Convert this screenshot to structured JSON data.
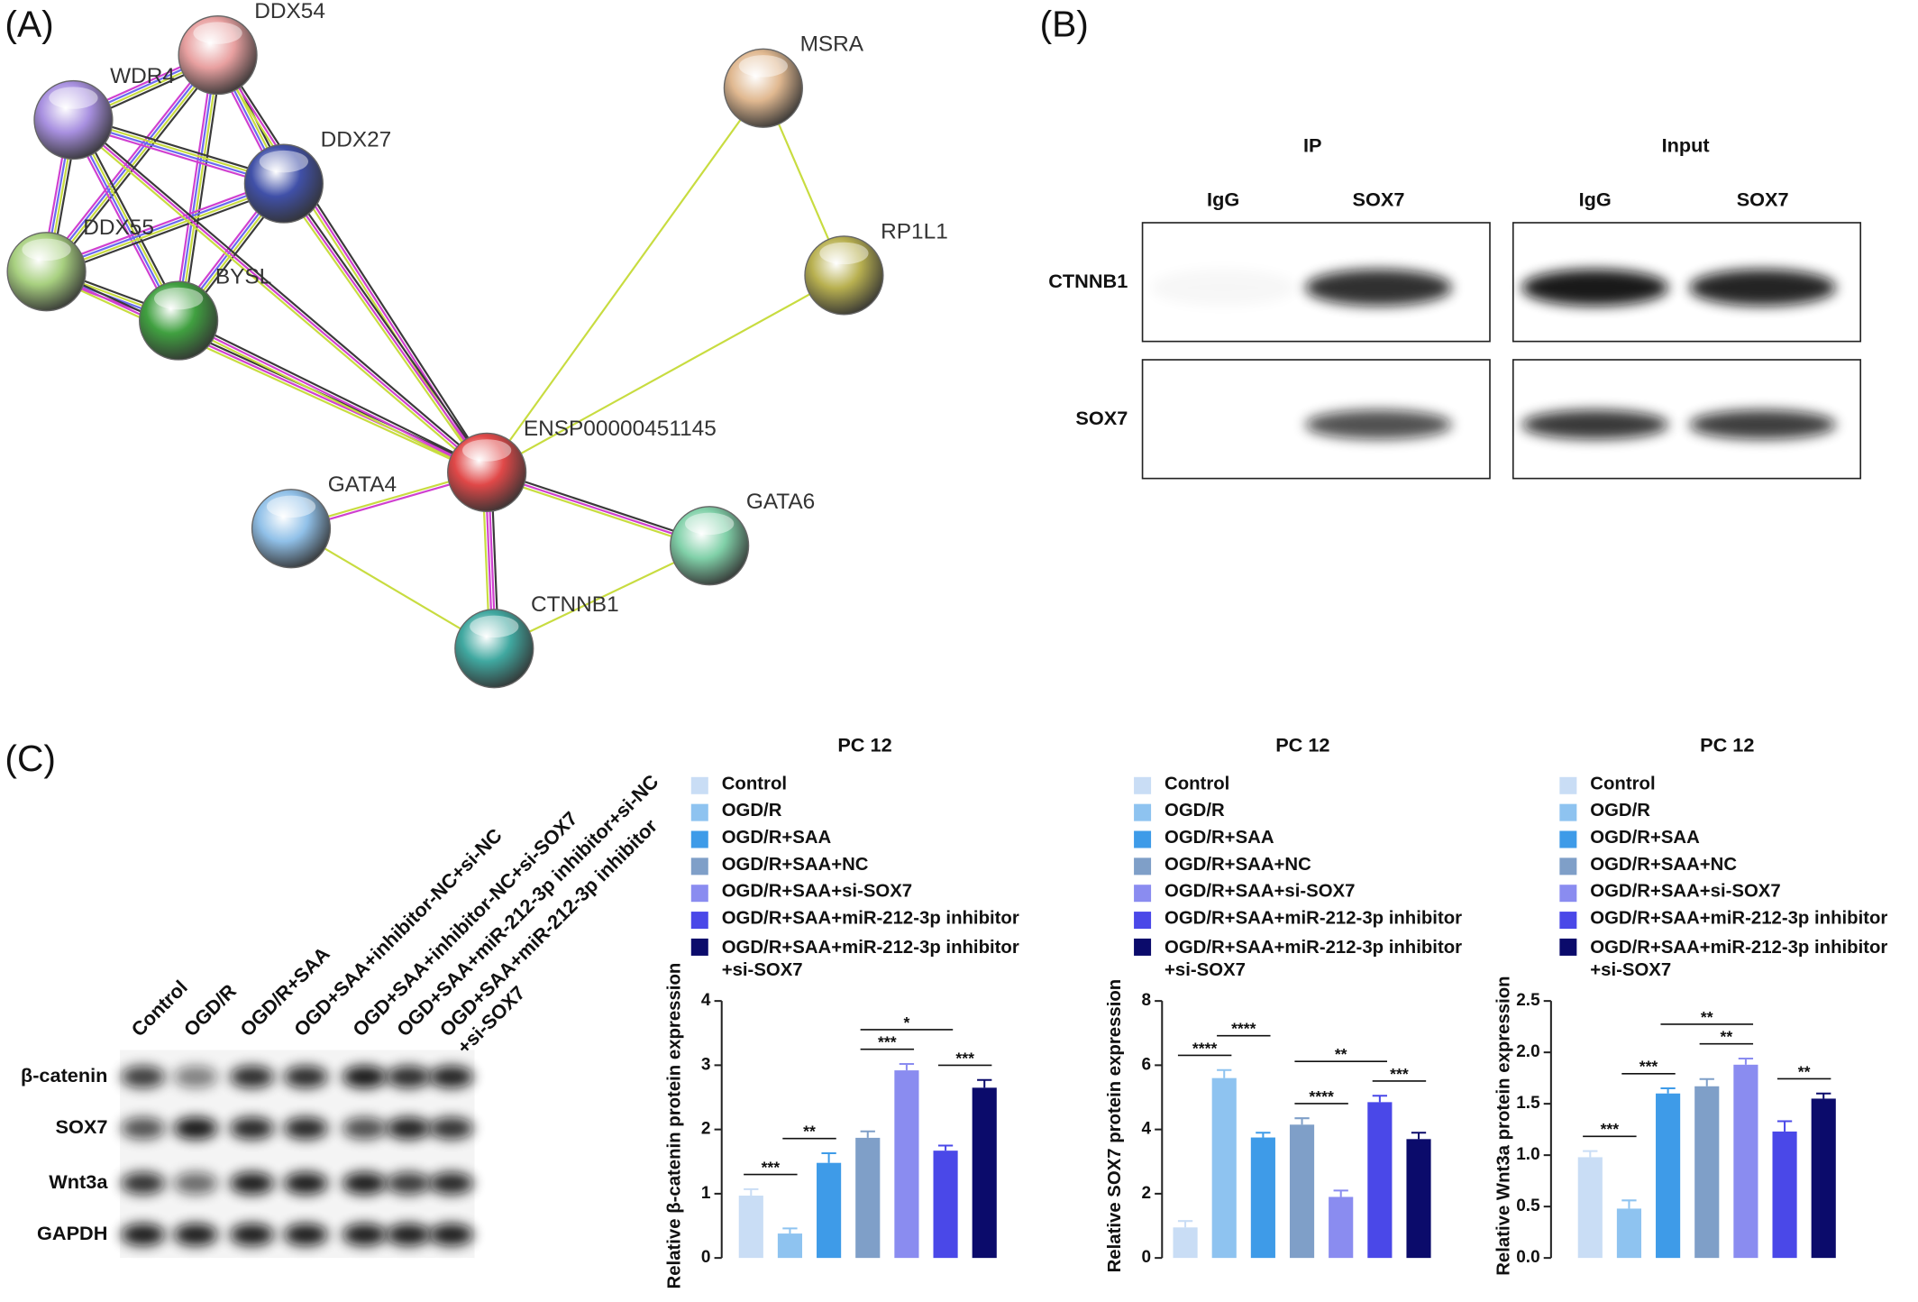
{
  "panels": [
    "(A)",
    "(B)",
    "(C)"
  ],
  "network": {
    "nodes": [
      {
        "label": "DDX54"
      },
      {
        "label": "WDR4"
      },
      {
        "label": "DDX27"
      },
      {
        "label": "DDX55"
      },
      {
        "label": "BYSL"
      },
      {
        "label": "MSRA"
      },
      {
        "label": "RP1L1"
      },
      {
        "label": "ENSP00000451145"
      },
      {
        "label": "GATA4"
      },
      {
        "label": "GATA6"
      },
      {
        "label": "CTNNB1"
      }
    ]
  },
  "ip_blot": {
    "groups": [
      "IP",
      "Input"
    ],
    "lanes": [
      "IgG",
      "SOX7",
      "IgG",
      "SOX7"
    ],
    "rows": [
      "CTNNB1",
      "SOX7"
    ]
  },
  "western_blot": {
    "lanes": [
      "Control",
      "OGD/R",
      "OGD/R+SAA",
      "OGD+SAA+inhibitor-NC+si-NC",
      "OGD+SAA+inhibitor-NC+si-SOX7",
      "OGD+SAA+miR-212-3p inhibitor+si-NC",
      "OGD+SAA+miR-212-3p inhibitor\n+si-SOX7"
    ],
    "rows": [
      "β-catenin",
      "SOX7",
      "Wnt3a",
      "GAPDH"
    ]
  },
  "chart_data": [
    {
      "type": "bar",
      "title": "PC 12",
      "y_label": "Relative β-catenin protein expression",
      "categories": [
        "Control",
        "OGD/R",
        "OGD/R+SAA",
        "OGD/R+SAA+NC",
        "OGD/R+SAA+si-SOX7",
        "OGD/R+SAA+miR-212-3p inhibitor",
        "OGD/R+SAA+miR-212-3p inhibitor\n+si-SOX7"
      ],
      "colors": [
        "#c9ddf5",
        "#8ec3f0",
        "#3e9be8",
        "#7f9fc8",
        "#8a8cf0",
        "#4a48e8",
        "#0b0b6b"
      ],
      "values": [
        0.97,
        0.38,
        1.48,
        1.87,
        2.92,
        1.67,
        2.65
      ],
      "errors": [
        0.1,
        0.08,
        0.15,
        0.1,
        0.1,
        0.08,
        0.12
      ],
      "ylim": [
        0,
        4
      ],
      "yticks": [
        0,
        1,
        2,
        3,
        4
      ],
      "annotations": [
        "***",
        "**",
        "***",
        "*",
        "***"
      ]
    },
    {
      "type": "bar",
      "title": "PC 12",
      "y_label": "Relative SOX7 protein expression",
      "categories": [
        "Control",
        "OGD/R",
        "OGD/R+SAA",
        "OGD/R+SAA+NC",
        "OGD/R+SAA+si-SOX7",
        "OGD/R+SAA+miR-212-3p inhibitor",
        "OGD/R+SAA+miR-212-3p inhibitor\n+si-SOX7"
      ],
      "colors": [
        "#c9ddf5",
        "#8ec3f0",
        "#3e9be8",
        "#7f9fc8",
        "#8a8cf0",
        "#4a48e8",
        "#0b0b6b"
      ],
      "values": [
        0.95,
        5.6,
        3.75,
        4.15,
        1.9,
        4.85,
        3.7
      ],
      "errors": [
        0.2,
        0.25,
        0.15,
        0.2,
        0.2,
        0.2,
        0.2
      ],
      "ylim": [
        0,
        8
      ],
      "yticks": [
        0,
        2,
        4,
        6,
        8
      ],
      "annotations": [
        "****",
        "****",
        "****",
        "**",
        "***"
      ]
    },
    {
      "type": "bar",
      "title": "PC 12",
      "y_label": "Relative Wnt3a protein expression",
      "categories": [
        "Control",
        "OGD/R",
        "OGD/R+SAA",
        "OGD/R+SAA+NC",
        "OGD/R+SAA+si-SOX7",
        "OGD/R+SAA+miR-212-3p inhibitor",
        "OGD/R+SAA+miR-212-3p inhibitor\n+si-SOX7"
      ],
      "colors": [
        "#c9ddf5",
        "#8ec3f0",
        "#3e9be8",
        "#7f9fc8",
        "#8a8cf0",
        "#4a48e8",
        "#0b0b6b"
      ],
      "values": [
        0.98,
        0.48,
        1.6,
        1.67,
        1.88,
        1.23,
        1.55
      ],
      "errors": [
        0.06,
        0.08,
        0.05,
        0.07,
        0.06,
        0.1,
        0.05
      ],
      "ylim": [
        0,
        2.5
      ],
      "yticks": [
        {
          "value": 0,
          "label": "0.0"
        },
        0.5,
        {
          "value": 1,
          "label": "1.0"
        },
        1.5,
        {
          "value": 2,
          "label": "2.0"
        },
        2.5
      ],
      "annotations": [
        "***",
        "***",
        "**",
        "**",
        "**"
      ]
    }
  ]
}
